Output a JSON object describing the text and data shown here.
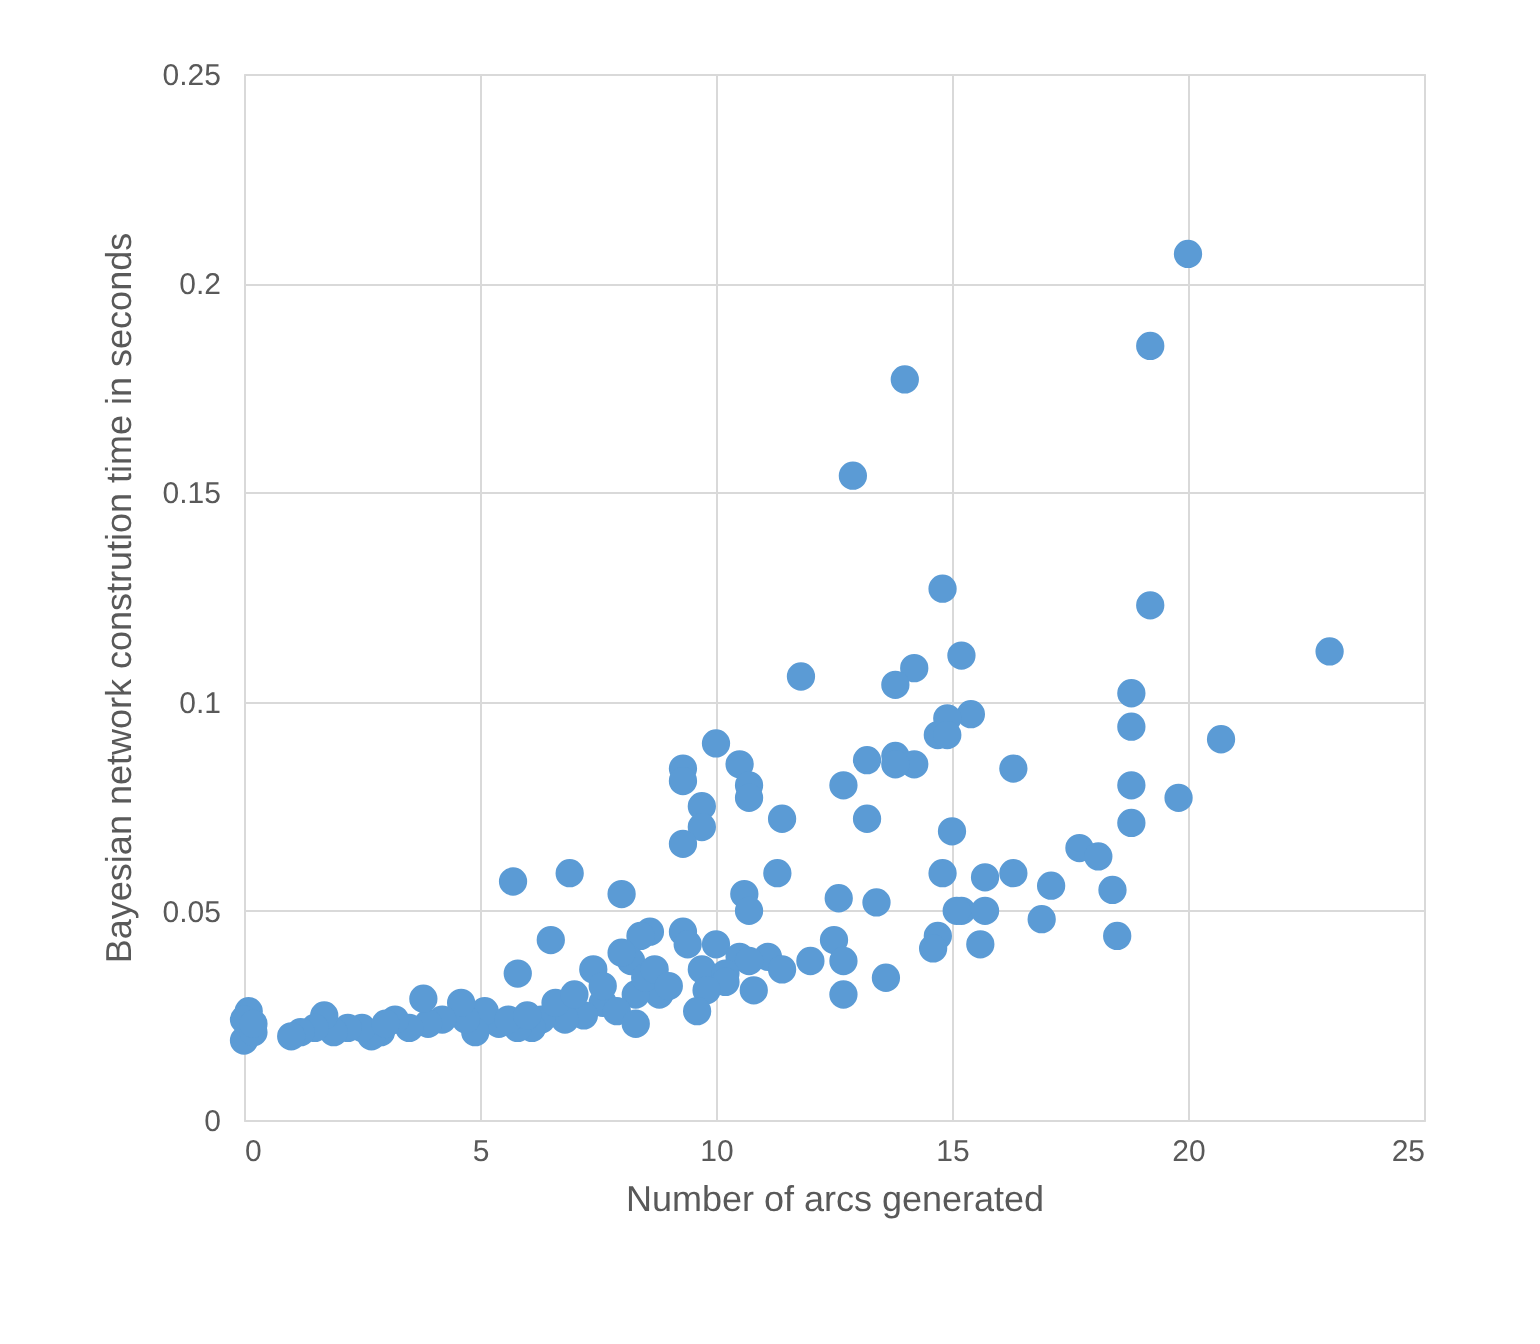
{
  "chart_data": {
    "type": "scatter",
    "xlabel": "Number of arcs generated",
    "ylabel": "Bayesian network constrution time in seconds",
    "xlim": [
      0,
      25
    ],
    "xticks": [
      0,
      5,
      10,
      15,
      20,
      25
    ],
    "ylim": [
      0,
      0.25
    ],
    "yticks": [
      0,
      0.05,
      0.1,
      0.15,
      0.2,
      0.25
    ],
    "grid": true,
    "marker": "circle",
    "series": [
      {
        "color": "#5b9bd5",
        "x": [
          20.0,
          19.2,
          14.0,
          12.9,
          14.8,
          19.2,
          23,
          15.2,
          11.8,
          14.2,
          13.8,
          18.8,
          15.4,
          14.9,
          18.8,
          14.7,
          14.9,
          20.7,
          10.0,
          13.2,
          13.8,
          14.2,
          13.8,
          10.5,
          16.3,
          9.3,
          9.3,
          10.7,
          18.8,
          12.7,
          19.8,
          10.7,
          9.7,
          13.2,
          11.4,
          18.8,
          9.7,
          15.0,
          9.3,
          17.7,
          18.1,
          16.3,
          14.8,
          11.3,
          5.7,
          6.9,
          15.7,
          17.1,
          18.4,
          10.6,
          8.0,
          12.6,
          13.4,
          15.2,
          15.7,
          10.7,
          15.1,
          16.9,
          8.6,
          9.3,
          8.4,
          14.7,
          18.5,
          6.5,
          12.5,
          9.4,
          10.0,
          15.6,
          14.6,
          10.5,
          11.1,
          12.0,
          12.7,
          8.2,
          10.7,
          11.4,
          7.4,
          9.7,
          10.2,
          13.6,
          5.8,
          10.2,
          9.8,
          10.8,
          12.7,
          8.8,
          9.6,
          8.3,
          8.5,
          7.6,
          7.9,
          8.3,
          7.2,
          6.8,
          6.3,
          6.1,
          5.8,
          5.4,
          5.1,
          4.9,
          4.7,
          4.6,
          4.2,
          3.9,
          3.8,
          3.5,
          3.2,
          2.9,
          2.7,
          2.5,
          2.2,
          1.9,
          1.7,
          1.5,
          1.2,
          1.0,
          0.1,
          0.0,
          0.0,
          0.2,
          0.2,
          5.6,
          6.6,
          7.0,
          8.7,
          9.0,
          3.0,
          6.0,
          7.6,
          8.0
        ],
        "values": [
          0.207,
          0.185,
          0.177,
          0.154,
          0.127,
          0.123,
          0.112,
          0.111,
          0.106,
          0.108,
          0.104,
          0.102,
          0.097,
          0.096,
          0.094,
          0.092,
          0.092,
          0.091,
          0.09,
          0.086,
          0.087,
          0.085,
          0.085,
          0.085,
          0.084,
          0.084,
          0.081,
          0.08,
          0.08,
          0.08,
          0.077,
          0.077,
          0.075,
          0.072,
          0.072,
          0.071,
          0.07,
          0.069,
          0.066,
          0.065,
          0.063,
          0.059,
          0.059,
          0.059,
          0.057,
          0.059,
          0.058,
          0.056,
          0.055,
          0.054,
          0.054,
          0.053,
          0.052,
          0.05,
          0.05,
          0.05,
          0.05,
          0.048,
          0.045,
          0.045,
          0.044,
          0.044,
          0.044,
          0.043,
          0.043,
          0.042,
          0.042,
          0.042,
          0.041,
          0.039,
          0.039,
          0.038,
          0.038,
          0.038,
          0.038,
          0.036,
          0.036,
          0.036,
          0.035,
          0.034,
          0.035,
          0.033,
          0.031,
          0.031,
          0.03,
          0.03,
          0.026,
          0.03,
          0.034,
          0.028,
          0.026,
          0.023,
          0.025,
          0.024,
          0.024,
          0.022,
          0.022,
          0.023,
          0.026,
          0.021,
          0.024,
          0.028,
          0.024,
          0.023,
          0.029,
          0.022,
          0.024,
          0.021,
          0.02,
          0.022,
          0.022,
          0.021,
          0.025,
          0.022,
          0.021,
          0.02,
          0.026,
          0.024,
          0.019,
          0.021,
          0.023,
          0.024,
          0.028,
          0.03,
          0.036,
          0.032,
          0.023,
          0.025,
          0.032,
          0.04
        ]
      }
    ]
  }
}
